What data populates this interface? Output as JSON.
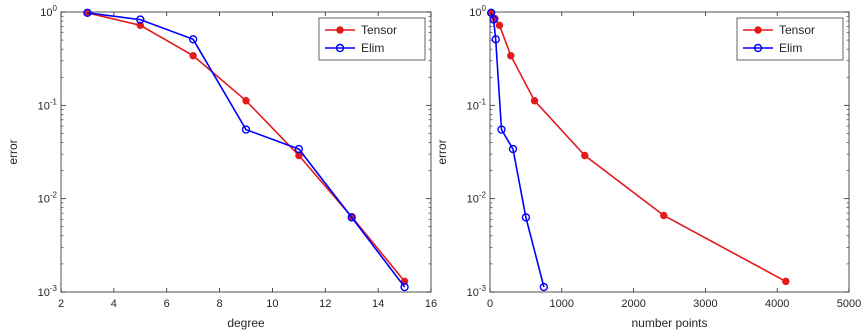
{
  "chart_data": [
    {
      "type": "line",
      "xlabel": "degree",
      "ylabel": "error",
      "yscale": "log",
      "xlim": [
        2,
        16
      ],
      "ylim": [
        0.001,
        1
      ],
      "xticks": [
        2,
        4,
        6,
        8,
        10,
        12,
        14,
        16
      ],
      "yticks": [
        0.001,
        0.01,
        0.1,
        1
      ],
      "grid": false,
      "legend_position": "top-right",
      "series": [
        {
          "name": "Tensor",
          "color": "#e31a1c",
          "marker": "filled-circle",
          "x": [
            3,
            5,
            7,
            9,
            11,
            13,
            15
          ],
          "y": [
            0.98,
            0.72,
            0.34,
            0.112,
            0.029,
            0.0064,
            0.0013
          ]
        },
        {
          "name": "Elim",
          "color": "#0000ff",
          "marker": "open-circle",
          "x": [
            3,
            5,
            7,
            9,
            11,
            13,
            15
          ],
          "y": [
            0.98,
            0.83,
            0.51,
            0.055,
            0.034,
            0.0063,
            0.00113
          ]
        }
      ]
    },
    {
      "type": "line",
      "xlabel": "number points",
      "ylabel": "error",
      "yscale": "log",
      "xlim": [
        0,
        5000
      ],
      "ylim": [
        0.001,
        1
      ],
      "xticks": [
        0,
        1000,
        2000,
        3000,
        4000,
        5000
      ],
      "yticks": [
        0.001,
        0.01,
        0.1,
        1
      ],
      "grid": false,
      "legend_position": "top-right",
      "series": [
        {
          "name": "Tensor",
          "color": "#e31a1c",
          "marker": "filled-circle",
          "x": [
            16,
            70,
            132,
            290,
            620,
            1320,
            2420,
            4120
          ],
          "y": [
            0.98,
            0.85,
            0.72,
            0.34,
            0.112,
            0.029,
            0.0066,
            0.0013
          ]
        },
        {
          "name": "Elim",
          "color": "#0000ff",
          "marker": "open-circle",
          "x": [
            16,
            50,
            80,
            160,
            320,
            500,
            750
          ],
          "y": [
            0.98,
            0.83,
            0.51,
            0.055,
            0.034,
            0.0063,
            0.00113
          ]
        }
      ]
    }
  ]
}
